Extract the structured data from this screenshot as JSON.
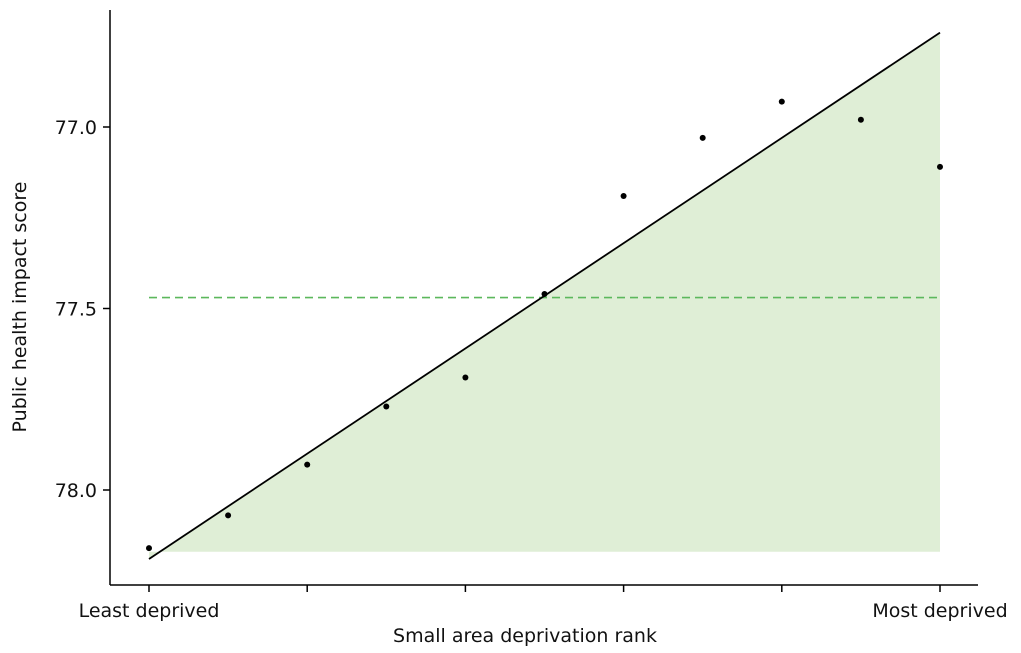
{
  "chart_data": {
    "type": "scatter",
    "title": "",
    "xlabel": "Small area deprivation rank",
    "ylabel": "Public health impact score",
    "xlim": [
      0,
      10
    ],
    "ylim": [
      78.18,
      76.72
    ],
    "y_axis_inverted": true,
    "x_ticks": [
      0,
      2,
      4,
      6,
      8,
      10
    ],
    "x_tick_labels": [
      "Least deprived",
      "",
      "",
      "",
      "",
      "Most deprived"
    ],
    "y_ticks": [
      77.0,
      77.5,
      78.0
    ],
    "y_tick_labels": [
      "77.0",
      "77.5",
      "78.0"
    ],
    "grid": false,
    "series": [
      {
        "values_x": [
          0,
          1,
          2,
          3,
          4,
          5,
          6,
          7,
          8,
          9,
          10
        ],
        "values_y": [
          78.16,
          78.07,
          77.93,
          77.77,
          77.69,
          77.46,
          77.19,
          77.03,
          76.93,
          76.98,
          77.11
        ]
      }
    ],
    "regression_line": {
      "x": [
        0,
        10
      ],
      "y": [
        78.19,
        76.74
      ]
    },
    "shaded_area": {
      "color": "#dfeed6",
      "bottom_y": 78.17
    },
    "reference_line": {
      "y": 77.47,
      "style": "dashed",
      "color": "#5cb85c"
    },
    "colors": {
      "points": "#000000",
      "regression_line": "#000000",
      "axis": "#000000"
    }
  }
}
